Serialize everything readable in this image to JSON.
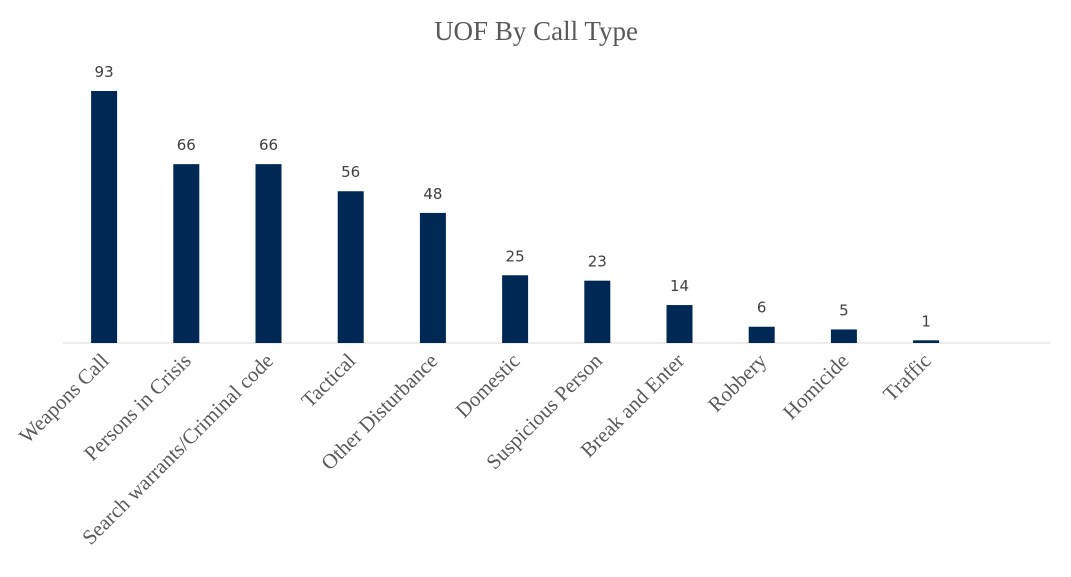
{
  "chart_data": {
    "type": "bar",
    "title": "UOF By Call Type",
    "categories": [
      "Weapons Call",
      "Persons in Crisis",
      "Search warrants/Criminal code",
      "Tactical",
      "Other Disturbance",
      "Domestic",
      "Suspicious Person",
      "Break and Enter",
      "Robbery",
      "Homicide",
      "Traffic"
    ],
    "values": [
      93,
      66,
      66,
      56,
      48,
      25,
      23,
      14,
      6,
      5,
      1
    ],
    "color": "#002855"
  }
}
